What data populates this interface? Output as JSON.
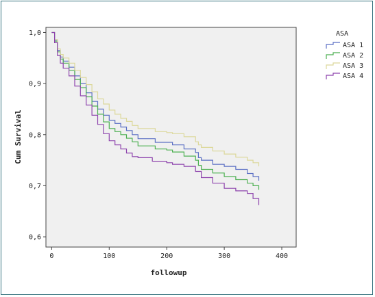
{
  "chart_data": {
    "type": "line",
    "title": "",
    "xlabel": "followup",
    "ylabel": "Cum Survival",
    "xlim": [
      -10,
      425
    ],
    "ylim": [
      0.58,
      1.01
    ],
    "xticks": [
      0,
      100,
      200,
      300,
      400
    ],
    "yticks": [
      0.6,
      0.7,
      0.8,
      0.9,
      1.0
    ],
    "xtick_labels": [
      "0",
      "100",
      "200",
      "300",
      "400"
    ],
    "ytick_labels": [
      "0,6",
      "0,7",
      "0,8",
      "0,9",
      "1,0"
    ],
    "grid": false,
    "legend": {
      "title": "ASA",
      "placement": "right-top"
    },
    "series": [
      {
        "name": "ASA 1",
        "color": "#5b6fc4",
        "points": [
          [
            0,
            1.0
          ],
          [
            5,
            0.985
          ],
          [
            10,
            0.965
          ],
          [
            15,
            0.952
          ],
          [
            20,
            0.944
          ],
          [
            30,
            0.932
          ],
          [
            40,
            0.915
          ],
          [
            50,
            0.9
          ],
          [
            60,
            0.882
          ],
          [
            70,
            0.865
          ],
          [
            80,
            0.85
          ],
          [
            90,
            0.838
          ],
          [
            100,
            0.828
          ],
          [
            110,
            0.822
          ],
          [
            120,
            0.815
          ],
          [
            130,
            0.808
          ],
          [
            140,
            0.8
          ],
          [
            150,
            0.792
          ],
          [
            175,
            0.792
          ],
          [
            180,
            0.785
          ],
          [
            200,
            0.785
          ],
          [
            210,
            0.78
          ],
          [
            230,
            0.772
          ],
          [
            250,
            0.765
          ],
          [
            255,
            0.755
          ],
          [
            260,
            0.75
          ],
          [
            280,
            0.742
          ],
          [
            300,
            0.738
          ],
          [
            320,
            0.732
          ],
          [
            340,
            0.724
          ],
          [
            350,
            0.718
          ],
          [
            360,
            0.71
          ]
        ]
      },
      {
        "name": "ASA 2",
        "color": "#4caf50",
        "points": [
          [
            0,
            1.0
          ],
          [
            5,
            0.983
          ],
          [
            10,
            0.962
          ],
          [
            15,
            0.948
          ],
          [
            20,
            0.94
          ],
          [
            30,
            0.926
          ],
          [
            40,
            0.908
          ],
          [
            50,
            0.892
          ],
          [
            60,
            0.874
          ],
          [
            70,
            0.856
          ],
          [
            80,
            0.84
          ],
          [
            90,
            0.825
          ],
          [
            100,
            0.812
          ],
          [
            110,
            0.806
          ],
          [
            120,
            0.8
          ],
          [
            130,
            0.793
          ],
          [
            140,
            0.786
          ],
          [
            150,
            0.778
          ],
          [
            175,
            0.778
          ],
          [
            180,
            0.772
          ],
          [
            200,
            0.77
          ],
          [
            210,
            0.766
          ],
          [
            230,
            0.758
          ],
          [
            250,
            0.75
          ],
          [
            255,
            0.74
          ],
          [
            260,
            0.732
          ],
          [
            280,
            0.725
          ],
          [
            300,
            0.718
          ],
          [
            320,
            0.712
          ],
          [
            340,
            0.705
          ],
          [
            350,
            0.7
          ],
          [
            360,
            0.692
          ]
        ]
      },
      {
        "name": "ASA 3",
        "color": "#dcd89a",
        "points": [
          [
            0,
            1.0
          ],
          [
            5,
            0.986
          ],
          [
            10,
            0.968
          ],
          [
            15,
            0.957
          ],
          [
            20,
            0.95
          ],
          [
            30,
            0.94
          ],
          [
            40,
            0.926
          ],
          [
            50,
            0.912
          ],
          [
            60,
            0.898
          ],
          [
            70,
            0.884
          ],
          [
            80,
            0.87
          ],
          [
            90,
            0.86
          ],
          [
            100,
            0.848
          ],
          [
            110,
            0.84
          ],
          [
            120,
            0.832
          ],
          [
            130,
            0.826
          ],
          [
            140,
            0.818
          ],
          [
            150,
            0.812
          ],
          [
            175,
            0.812
          ],
          [
            180,
            0.806
          ],
          [
            200,
            0.804
          ],
          [
            210,
            0.802
          ],
          [
            230,
            0.796
          ],
          [
            250,
            0.786
          ],
          [
            255,
            0.78
          ],
          [
            260,
            0.775
          ],
          [
            280,
            0.768
          ],
          [
            300,
            0.762
          ],
          [
            320,
            0.756
          ],
          [
            340,
            0.75
          ],
          [
            350,
            0.745
          ],
          [
            360,
            0.738
          ]
        ]
      },
      {
        "name": "ASA 4",
        "color": "#8e44ad",
        "points": [
          [
            0,
            1.0
          ],
          [
            5,
            0.98
          ],
          [
            10,
            0.955
          ],
          [
            15,
            0.94
          ],
          [
            20,
            0.93
          ],
          [
            30,
            0.915
          ],
          [
            40,
            0.895
          ],
          [
            50,
            0.876
          ],
          [
            60,
            0.858
          ],
          [
            70,
            0.838
          ],
          [
            80,
            0.82
          ],
          [
            90,
            0.802
          ],
          [
            100,
            0.788
          ],
          [
            110,
            0.78
          ],
          [
            120,
            0.772
          ],
          [
            130,
            0.764
          ],
          [
            140,
            0.757
          ],
          [
            150,
            0.755
          ],
          [
            170,
            0.755
          ],
          [
            175,
            0.748
          ],
          [
            200,
            0.745
          ],
          [
            210,
            0.742
          ],
          [
            230,
            0.738
          ],
          [
            250,
            0.728
          ],
          [
            260,
            0.716
          ],
          [
            280,
            0.705
          ],
          [
            300,
            0.695
          ],
          [
            320,
            0.69
          ],
          [
            340,
            0.685
          ],
          [
            350,
            0.675
          ],
          [
            360,
            0.662
          ]
        ]
      }
    ]
  }
}
